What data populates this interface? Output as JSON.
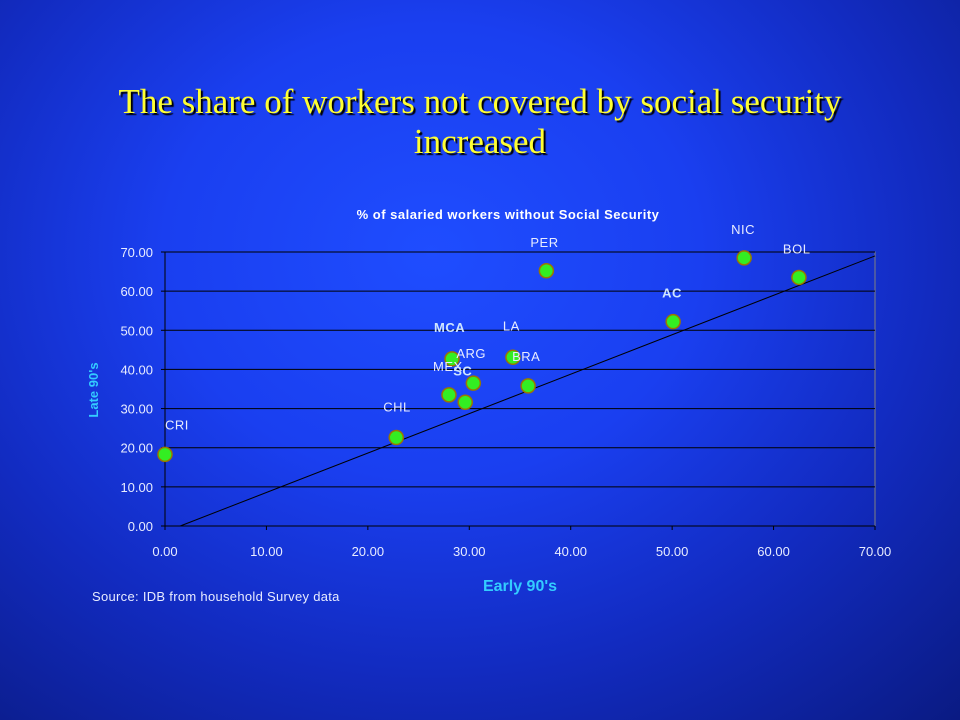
{
  "slide": {
    "title_line1": "The share of workers not covered by social security",
    "title_line2": "increased"
  },
  "chart_data": {
    "type": "scatter",
    "title": "% of salaried workers without Social Security",
    "xlabel": "Early 90's",
    "ylabel": "Late 90's",
    "xlim": [
      0,
      70
    ],
    "ylim": [
      0,
      70
    ],
    "grid": "horizontal",
    "x_ticks": [
      "0.00",
      "10.00",
      "20.00",
      "30.00",
      "40.00",
      "50.00",
      "60.00",
      "70.00"
    ],
    "y_ticks": [
      "0.00",
      "10.00",
      "20.00",
      "30.00",
      "40.00",
      "50.00",
      "60.00",
      "70.00"
    ],
    "source": "Source: IDB from household Survey data",
    "reference_line": {
      "from": [
        1.5,
        0
      ],
      "to": [
        70,
        69
      ]
    },
    "points": [
      {
        "label": "CRI",
        "x": 0.0,
        "y": 18.3
      },
      {
        "label": "CHL",
        "x": 22.8,
        "y": 22.6
      },
      {
        "label": "MEX",
        "x": 28.0,
        "y": 33.5
      },
      {
        "label": "MCA",
        "x": 28.3,
        "y": 42.7
      },
      {
        "label": "ARG",
        "x": 30.4,
        "y": 36.5
      },
      {
        "label": "SC",
        "x": 29.6,
        "y": 31.6
      },
      {
        "label": "LA",
        "x": 34.3,
        "y": 43.1
      },
      {
        "label": "BRA",
        "x": 35.8,
        "y": 35.8
      },
      {
        "label": "PER",
        "x": 37.6,
        "y": 65.2
      },
      {
        "label": "AC",
        "x": 50.1,
        "y": 52.2
      },
      {
        "label": "NIC",
        "x": 57.1,
        "y": 68.5
      },
      {
        "label": "BOL",
        "x": 62.5,
        "y": 63.5
      }
    ],
    "colors": {
      "point_fill": "#33ee22",
      "point_stroke": "#997700",
      "axis_label": "#33ccff",
      "tick_text": "#e8ecff",
      "bold_label": "#cfe6ff",
      "grid": "#000000",
      "plot_border": "#808080"
    }
  }
}
